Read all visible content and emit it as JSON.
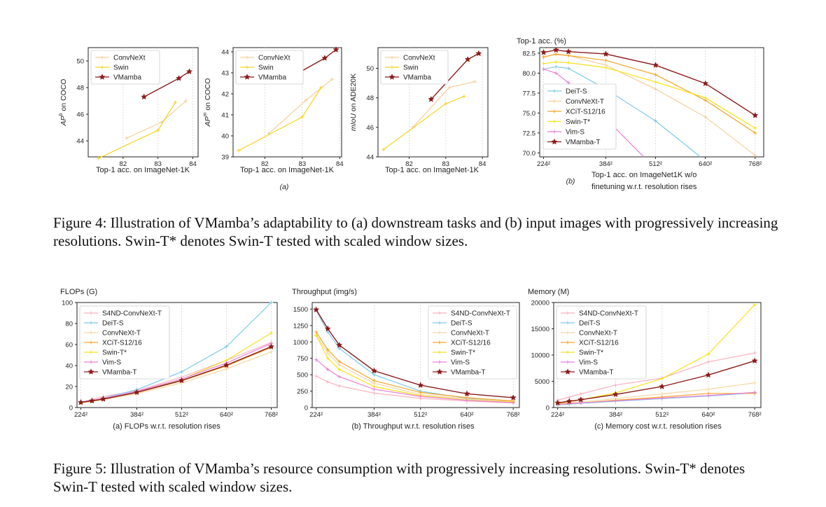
{
  "figure4": {
    "caption": "Figure 4: Illustration of VMamba’s adaptability to (a) downstream tasks and (b) input images with progressively increasing resolutions. Swin-T* denotes Swin-T tested with scaled window sizes.",
    "group_label_a": "(a)",
    "group_label_b": "(b)"
  },
  "figure5": {
    "caption": "Figure 5: Illustration of VMamba’s resource consumption with progressively increasing resolutions. Swin-T* denotes Swin-T tested with scaled window sizes."
  },
  "colors": {
    "ConvNeXt": "#f6cf9e",
    "Swin": "#f7d21e",
    "VMamba": "#8b1a1a",
    "DeiT-S": "#7fc8ea",
    "XCiT-S12/16": "#f3a52a",
    "Swin-T*": "#f5e21a",
    "Vim-S": "#ea7fd8",
    "S4ND-ConvNeXt-T": "#f7b3c2",
    "ConvNeXt-T": "#f3d7a0",
    "VMamba-T": "#8b1a1a",
    "axis": "#222222",
    "grid": "#cfcfcf"
  },
  "chart_data": [
    {
      "id": "c4a1",
      "type": "line",
      "title": "",
      "xlabel": "Top-1 acc. on ImageNet-1K",
      "ylabel_html": "APb on COCO",
      "xlim": [
        81.0,
        84.15
      ],
      "ylim": [
        42.8,
        51.0
      ],
      "xticks": [
        82,
        83,
        84
      ],
      "yticks": [
        44,
        46,
        48,
        50
      ],
      "xtick_labels": [
        "82",
        "83",
        "84"
      ],
      "ytick_labels": [
        "44",
        "46",
        "48",
        "50"
      ],
      "legend": "upper-left",
      "series": [
        {
          "name": "ConvNeXt",
          "key": "ConvNeXt",
          "marker": "plus",
          "x": [
            82.1,
            83.1,
            83.8
          ],
          "y": [
            44.2,
            45.4,
            47.0
          ]
        },
        {
          "name": "Swin",
          "key": "Swin",
          "marker": "plus",
          "x": [
            81.3,
            83.0,
            83.5
          ],
          "y": [
            42.7,
            44.8,
            46.9
          ]
        },
        {
          "name": "VMamba",
          "key": "VMamba",
          "marker": "star",
          "x": [
            82.6,
            83.6,
            83.9
          ],
          "y": [
            47.3,
            48.7,
            49.2
          ]
        }
      ]
    },
    {
      "id": "c4a2",
      "type": "line",
      "title": "",
      "xlabel": "Top-1 acc. on ImageNet-1K",
      "ylabel_html": "APm on COCO",
      "xlim": [
        81.15,
        84.05
      ],
      "ylim": [
        39.0,
        44.2
      ],
      "xticks": [
        82,
        83,
        84
      ],
      "yticks": [
        39,
        40,
        41,
        42,
        43,
        44
      ],
      "xtick_labels": [
        "82",
        "83",
        "84"
      ],
      "ytick_labels": [
        "39",
        "40",
        "41",
        "42",
        "43",
        "44"
      ],
      "legend": "upper-left",
      "series": [
        {
          "name": "ConvNeXt",
          "key": "ConvNeXt",
          "marker": "plus",
          "x": [
            82.1,
            83.1,
            83.8
          ],
          "y": [
            40.1,
            41.7,
            42.7
          ]
        },
        {
          "name": "Swin",
          "key": "Swin",
          "marker": "plus",
          "x": [
            81.3,
            83.0,
            83.5
          ],
          "y": [
            39.3,
            40.9,
            42.3
          ]
        },
        {
          "name": "VMamba",
          "key": "VMamba",
          "marker": "star",
          "x": [
            82.6,
            83.6,
            83.9
          ],
          "y": [
            42.7,
            43.7,
            44.1
          ]
        }
      ]
    },
    {
      "id": "c4a3",
      "type": "line",
      "title": "",
      "xlabel": "Top-1 acc. on ImageNet-1K",
      "ylabel_html": "mIoU on ADE20K",
      "xlim": [
        81.15,
        84.15
      ],
      "ylim": [
        44.0,
        51.4
      ],
      "xticks": [
        82,
        83,
        84
      ],
      "yticks": [
        44,
        46,
        48,
        50
      ],
      "xtick_labels": [
        "82",
        "83",
        "84"
      ],
      "ytick_labels": [
        "44",
        "46",
        "48",
        "50"
      ],
      "legend": "upper-left",
      "series": [
        {
          "name": "ConvNeXt",
          "key": "ConvNeXt",
          "marker": "plus",
          "x": [
            82.1,
            83.1,
            83.8
          ],
          "y": [
            46.0,
            48.7,
            49.1
          ]
        },
        {
          "name": "Swin",
          "key": "Swin",
          "marker": "plus",
          "x": [
            81.3,
            83.0,
            83.5
          ],
          "y": [
            44.5,
            47.6,
            48.1
          ]
        },
        {
          "name": "VMamba",
          "key": "VMamba",
          "marker": "star",
          "x": [
            82.6,
            83.6,
            83.9
          ],
          "y": [
            47.9,
            50.6,
            51.0
          ]
        }
      ]
    },
    {
      "id": "c4b",
      "type": "line",
      "title": "Top-1 acc. (%)",
      "xlabel": "Top-1 acc. on ImageNet1K w/o finetuning w.r.t. resolution rises",
      "xlabel_line1": "Top-1 acc. on ImageNet1K w/o",
      "xlabel_line2": "finetuning w.r.t. resolution rises",
      "xlim": [
        214,
        790
      ],
      "ylim": [
        69.5,
        83.2
      ],
      "xticks": [
        224,
        384,
        512,
        640,
        768
      ],
      "yticks": [
        70.0,
        72.5,
        75.0,
        77.5,
        80.0,
        82.5
      ],
      "xtick_labels": [
        "224²",
        "384²",
        "512²",
        "640²",
        "768²"
      ],
      "ytick_labels": [
        "70.0",
        "72.5",
        "75.0",
        "77.5",
        "80.0",
        "82.5"
      ],
      "legend": "lower-left",
      "series": [
        {
          "name": "DeiT-S",
          "key": "DeiT-S",
          "marker": "plus",
          "x": [
            224,
            256,
            288,
            384,
            512,
            640
          ],
          "y": [
            80.5,
            80.8,
            80.6,
            78.0,
            74.0,
            69.0
          ]
        },
        {
          "name": "ConvNeXt-T",
          "key": "ConvNeXt",
          "marker": "plus",
          "x": [
            224,
            256,
            288,
            384,
            512,
            640,
            768
          ],
          "y": [
            82.1,
            82.3,
            82.2,
            81.0,
            78.0,
            74.5,
            69.7
          ]
        },
        {
          "name": "XCiT-S12/16",
          "key": "XCiT-S12/16",
          "marker": "plus",
          "x": [
            224,
            256,
            288,
            384,
            512,
            640,
            768
          ],
          "y": [
            82.0,
            82.4,
            82.2,
            81.6,
            79.8,
            76.6,
            72.5
          ]
        },
        {
          "name": "Swin-T*",
          "key": "Swin-T*",
          "marker": "plus",
          "x": [
            224,
            256,
            288,
            384,
            512,
            640,
            768
          ],
          "y": [
            81.2,
            81.4,
            81.3,
            80.7,
            78.9,
            76.9,
            73.1
          ]
        },
        {
          "name": "Vim-S",
          "key": "Vim-S",
          "marker": "plus",
          "x": [
            224,
            256,
            288,
            384,
            512
          ],
          "y": [
            80.5,
            80.0,
            78.8,
            74.3,
            68.0
          ]
        },
        {
          "name": "VMamba-T",
          "key": "VMamba-T",
          "marker": "star",
          "x": [
            224,
            256,
            288,
            384,
            512,
            640,
            768
          ],
          "y": [
            82.6,
            82.9,
            82.7,
            82.4,
            81.0,
            78.7,
            74.7
          ]
        }
      ]
    },
    {
      "id": "c5a",
      "type": "line",
      "title": "FLOPs (G)",
      "xlabel": "(a)  FLOPs w.r.t. resolution rises",
      "xlim": [
        213,
        785
      ],
      "ylim": [
        0,
        100
      ],
      "xticks": [
        224,
        384,
        512,
        640,
        768
      ],
      "yticks": [
        0,
        20,
        40,
        60,
        80,
        100
      ],
      "xtick_labels": [
        "224²",
        "384²",
        "512²",
        "640²",
        "768²"
      ],
      "ytick_labels": [
        "0",
        "20",
        "40",
        "60",
        "80",
        "100"
      ],
      "legend": "upper-left",
      "series": [
        {
          "name": "S4ND-ConvNeXt-T",
          "key": "S4ND-ConvNeXt-T",
          "marker": "plus",
          "x": [
            224,
            256,
            288,
            384,
            512,
            640,
            768
          ],
          "y": [
            5.2,
            7.7,
            10.5,
            16.0,
            29.0,
            45.0,
            62.0
          ]
        },
        {
          "name": "DeiT-S",
          "key": "DeiT-S",
          "marker": "plus",
          "x": [
            224,
            256,
            288,
            384,
            512,
            640,
            768
          ],
          "y": [
            4.6,
            6.5,
            8.9,
            17.0,
            34.0,
            58.0,
            100.0
          ]
        },
        {
          "name": "ConvNeXt-T",
          "key": "ConvNeXt-T",
          "marker": "plus",
          "x": [
            224,
            256,
            288,
            384,
            512,
            640,
            768
          ],
          "y": [
            4.5,
            6.0,
            7.4,
            13.2,
            23.5,
            36.8,
            53.0
          ]
        },
        {
          "name": "XCiT-S12/16",
          "key": "XCiT-S12/16",
          "marker": "plus",
          "x": [
            224,
            256,
            288,
            384,
            512,
            640,
            768
          ],
          "y": [
            4.8,
            6.3,
            8.0,
            14.3,
            25.4,
            39.7,
            57.2
          ]
        },
        {
          "name": "Swin-T*",
          "key": "Swin-T*",
          "marker": "plus",
          "x": [
            224,
            256,
            288,
            384,
            512,
            640,
            768
          ],
          "y": [
            4.5,
            6.2,
            8.0,
            15.0,
            27.0,
            45.0,
            71.0
          ]
        },
        {
          "name": "Vim-S",
          "key": "Vim-S",
          "marker": "plus",
          "x": [
            224,
            256,
            288,
            384,
            512,
            640,
            768
          ],
          "y": [
            5.3,
            6.9,
            8.8,
            15.3,
            27.2,
            42.4,
            61.0
          ]
        },
        {
          "name": "VMamba-T",
          "key": "VMamba-T",
          "marker": "star",
          "x": [
            224,
            256,
            288,
            384,
            512,
            640,
            768
          ],
          "y": [
            4.9,
            6.4,
            8.1,
            14.5,
            25.8,
            40.3,
            58.0
          ]
        }
      ]
    },
    {
      "id": "c5b",
      "type": "line",
      "title": "Throughput (img/s)",
      "xlabel": "(b)  Throughput w.r.t. resolution rises",
      "xlim": [
        213,
        785
      ],
      "ylim": [
        0,
        1600
      ],
      "xticks": [
        224,
        384,
        512,
        640,
        768
      ],
      "yticks": [
        0,
        250,
        500,
        750,
        1000,
        1250,
        1500
      ],
      "xtick_labels": [
        "224²",
        "384²",
        "512²",
        "640²",
        "768²"
      ],
      "ytick_labels": [
        "0",
        "250",
        "500",
        "750",
        "1000",
        "1250",
        "1500"
      ],
      "legend": "upper-right",
      "series": [
        {
          "name": "S4ND-ConvNeXt-T",
          "key": "S4ND-ConvNeXt-T",
          "marker": "plus",
          "x": [
            224,
            256,
            288,
            384,
            512,
            640,
            768
          ],
          "y": [
            480,
            390,
            330,
            220,
            140,
            100,
            70
          ]
        },
        {
          "name": "DeiT-S",
          "key": "DeiT-S",
          "marker": "plus",
          "x": [
            224,
            256,
            288,
            384,
            512,
            640,
            768
          ],
          "y": [
            1480,
            1150,
            900,
            500,
            250,
            140,
            80
          ]
        },
        {
          "name": "ConvNeXt-T",
          "key": "ConvNeXt-T",
          "marker": "plus",
          "x": [
            224,
            256,
            288,
            384,
            512,
            640,
            768
          ],
          "y": [
            1110,
            830,
            650,
            370,
            200,
            130,
            90
          ]
        },
        {
          "name": "XCiT-S12/16",
          "key": "XCiT-S12/16",
          "marker": "plus",
          "x": [
            224,
            256,
            288,
            384,
            512,
            640,
            768
          ],
          "y": [
            1150,
            880,
            700,
            410,
            230,
            150,
            100
          ]
        },
        {
          "name": "Swin-T*",
          "key": "Swin-T*",
          "marker": "plus",
          "x": [
            224,
            256,
            288,
            384,
            512,
            640,
            768
          ],
          "y": [
            1100,
            750,
            580,
            320,
            180,
            115,
            80
          ]
        },
        {
          "name": "Vim-S",
          "key": "Vim-S",
          "marker": "plus",
          "x": [
            224,
            256,
            288,
            384,
            512,
            640,
            768
          ],
          "y": [
            730,
            580,
            470,
            280,
            170,
            110,
            75
          ]
        },
        {
          "name": "VMamba-T",
          "key": "VMamba-T",
          "marker": "star",
          "x": [
            224,
            256,
            288,
            384,
            512,
            640,
            768
          ],
          "y": [
            1490,
            1200,
            950,
            560,
            340,
            210,
            150
          ]
        }
      ]
    },
    {
      "id": "c5c",
      "type": "line",
      "title": "Memory (M)",
      "xlabel": "(c)  Memory cost w.r.t. resolution rises",
      "xlim": [
        213,
        785
      ],
      "ylim": [
        0,
        20000
      ],
      "xticks": [
        224,
        384,
        512,
        640,
        768
      ],
      "yticks": [
        0,
        5000,
        10000,
        15000,
        20000
      ],
      "xtick_labels": [
        "224²",
        "384²",
        "512²",
        "640²",
        "768²"
      ],
      "ytick_labels": [
        "0",
        "5000",
        "10000",
        "15000",
        "20000"
      ],
      "legend": "upper-left",
      "series": [
        {
          "name": "S4ND-ConvNeXt-T",
          "key": "S4ND-ConvNeXt-T",
          "marker": "plus",
          "x": [
            224,
            256,
            288,
            384,
            512,
            640,
            768
          ],
          "y": [
            1400,
            2000,
            2600,
            4300,
            5600,
            8700,
            10400
          ]
        },
        {
          "name": "DeiT-S",
          "key": "DeiT-S",
          "marker": "plus",
          "x": [
            224,
            256,
            288,
            384,
            512,
            640,
            768
          ],
          "y": [
            500,
            650,
            800,
            1200,
            1700,
            2200,
            2800
          ]
        },
        {
          "name": "ConvNeXt-T",
          "key": "ConvNeXt-T",
          "marker": "plus",
          "x": [
            224,
            256,
            288,
            384,
            512,
            640,
            768
          ],
          "y": [
            700,
            900,
            1100,
            1700,
            2600,
            3500,
            4700
          ]
        },
        {
          "name": "XCiT-S12/16",
          "key": "XCiT-S12/16",
          "marker": "plus",
          "x": [
            224,
            256,
            288,
            384,
            512,
            640,
            768
          ],
          "y": [
            600,
            750,
            900,
            1400,
            2000,
            2700,
            2700
          ]
        },
        {
          "name": "Swin-T*",
          "key": "Swin-T*",
          "marker": "plus",
          "x": [
            224,
            256,
            288,
            384,
            512,
            640,
            768
          ],
          "y": [
            800,
            1100,
            1500,
            2800,
            5500,
            10200,
            19600
          ]
        },
        {
          "name": "Vim-S",
          "key": "Vim-S",
          "marker": "plus",
          "x": [
            224,
            256,
            288,
            384,
            512,
            640,
            768
          ],
          "y": [
            600,
            750,
            900,
            1300,
            1800,
            2300,
            2900
          ]
        },
        {
          "name": "VMamba-T",
          "key": "VMamba-T",
          "marker": "star",
          "x": [
            224,
            256,
            288,
            384,
            512,
            640,
            768
          ],
          "y": [
            900,
            1200,
            1500,
            2500,
            4000,
            6200,
            8900
          ]
        }
      ]
    }
  ]
}
